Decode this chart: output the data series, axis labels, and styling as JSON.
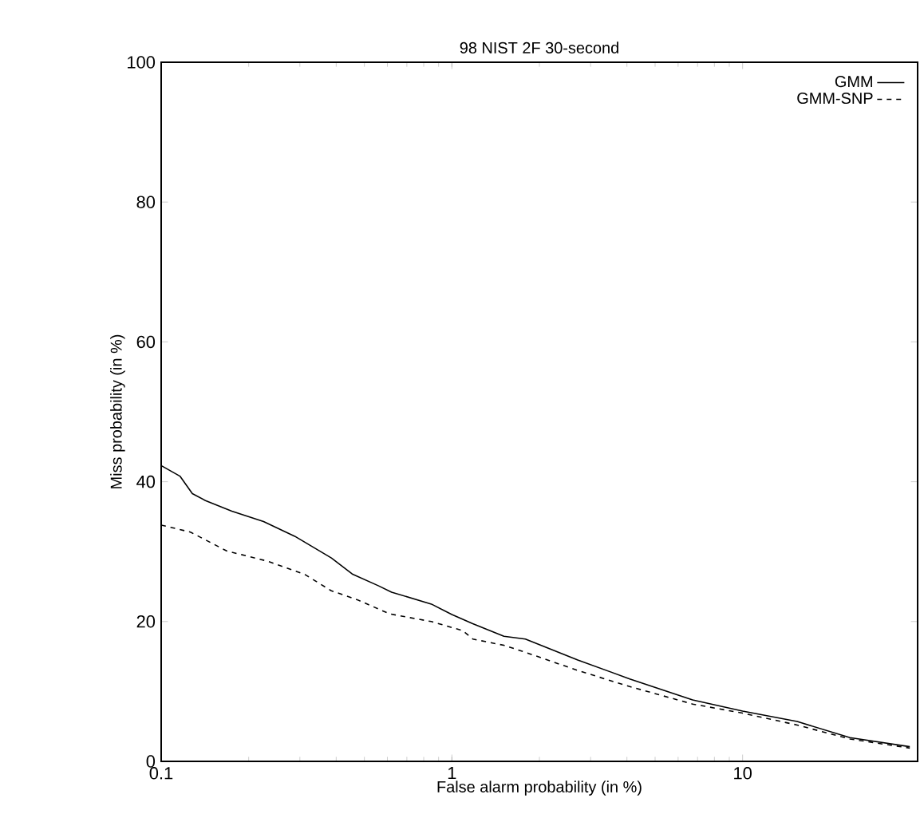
{
  "chart_data": {
    "type": "line",
    "title": "98 NIST 2F 30-second",
    "xlabel": "False alarm probability (in %)",
    "ylabel": "Miss probability (in %)",
    "log": "x",
    "xlim": [
      0.1,
      40
    ],
    "xticks": [
      0.1,
      1,
      10
    ],
    "ylim": [
      0,
      100
    ],
    "yticks": [
      0,
      20,
      40,
      60,
      80,
      100
    ],
    "grid": false,
    "legend": "top right",
    "series": [
      {
        "name": "GMM",
        "color": "#000000",
        "line_style": "solid",
        "x": [
          0.1,
          0.116,
          0.128,
          0.142,
          0.175,
          0.225,
          0.288,
          0.385,
          0.454,
          0.56,
          0.62,
          0.85,
          1,
          1.18,
          1.51,
          1.79,
          2.71,
          4.09,
          6.73,
          10,
          15.4,
          23.4,
          37.6
        ],
        "values": [
          42.3,
          40.8,
          38.3,
          37.3,
          35.8,
          34.3,
          32.2,
          29.1,
          26.8,
          25.1,
          24.2,
          22.5,
          21.0,
          19.7,
          17.9,
          17.5,
          14.5,
          11.8,
          8.8,
          7.2,
          5.7,
          3.4,
          2.1
        ]
      },
      {
        "name": "GMM-SNP",
        "color": "#000000",
        "line_style": "dashed",
        "x": [
          0.1,
          0.126,
          0.168,
          0.234,
          0.313,
          0.385,
          0.474,
          0.61,
          0.85,
          1.09,
          1.18,
          1.51,
          1.79,
          2.71,
          4.09,
          6.73,
          10,
          15.4,
          23.4,
          37.6
        ],
        "values": [
          33.8,
          32.8,
          30.1,
          28.6,
          26.7,
          24.4,
          23.1,
          21.1,
          20.0,
          18.7,
          17.5,
          16.6,
          15.6,
          13.0,
          10.7,
          8.2,
          6.9,
          5.2,
          3.2,
          1.9
        ]
      }
    ]
  }
}
